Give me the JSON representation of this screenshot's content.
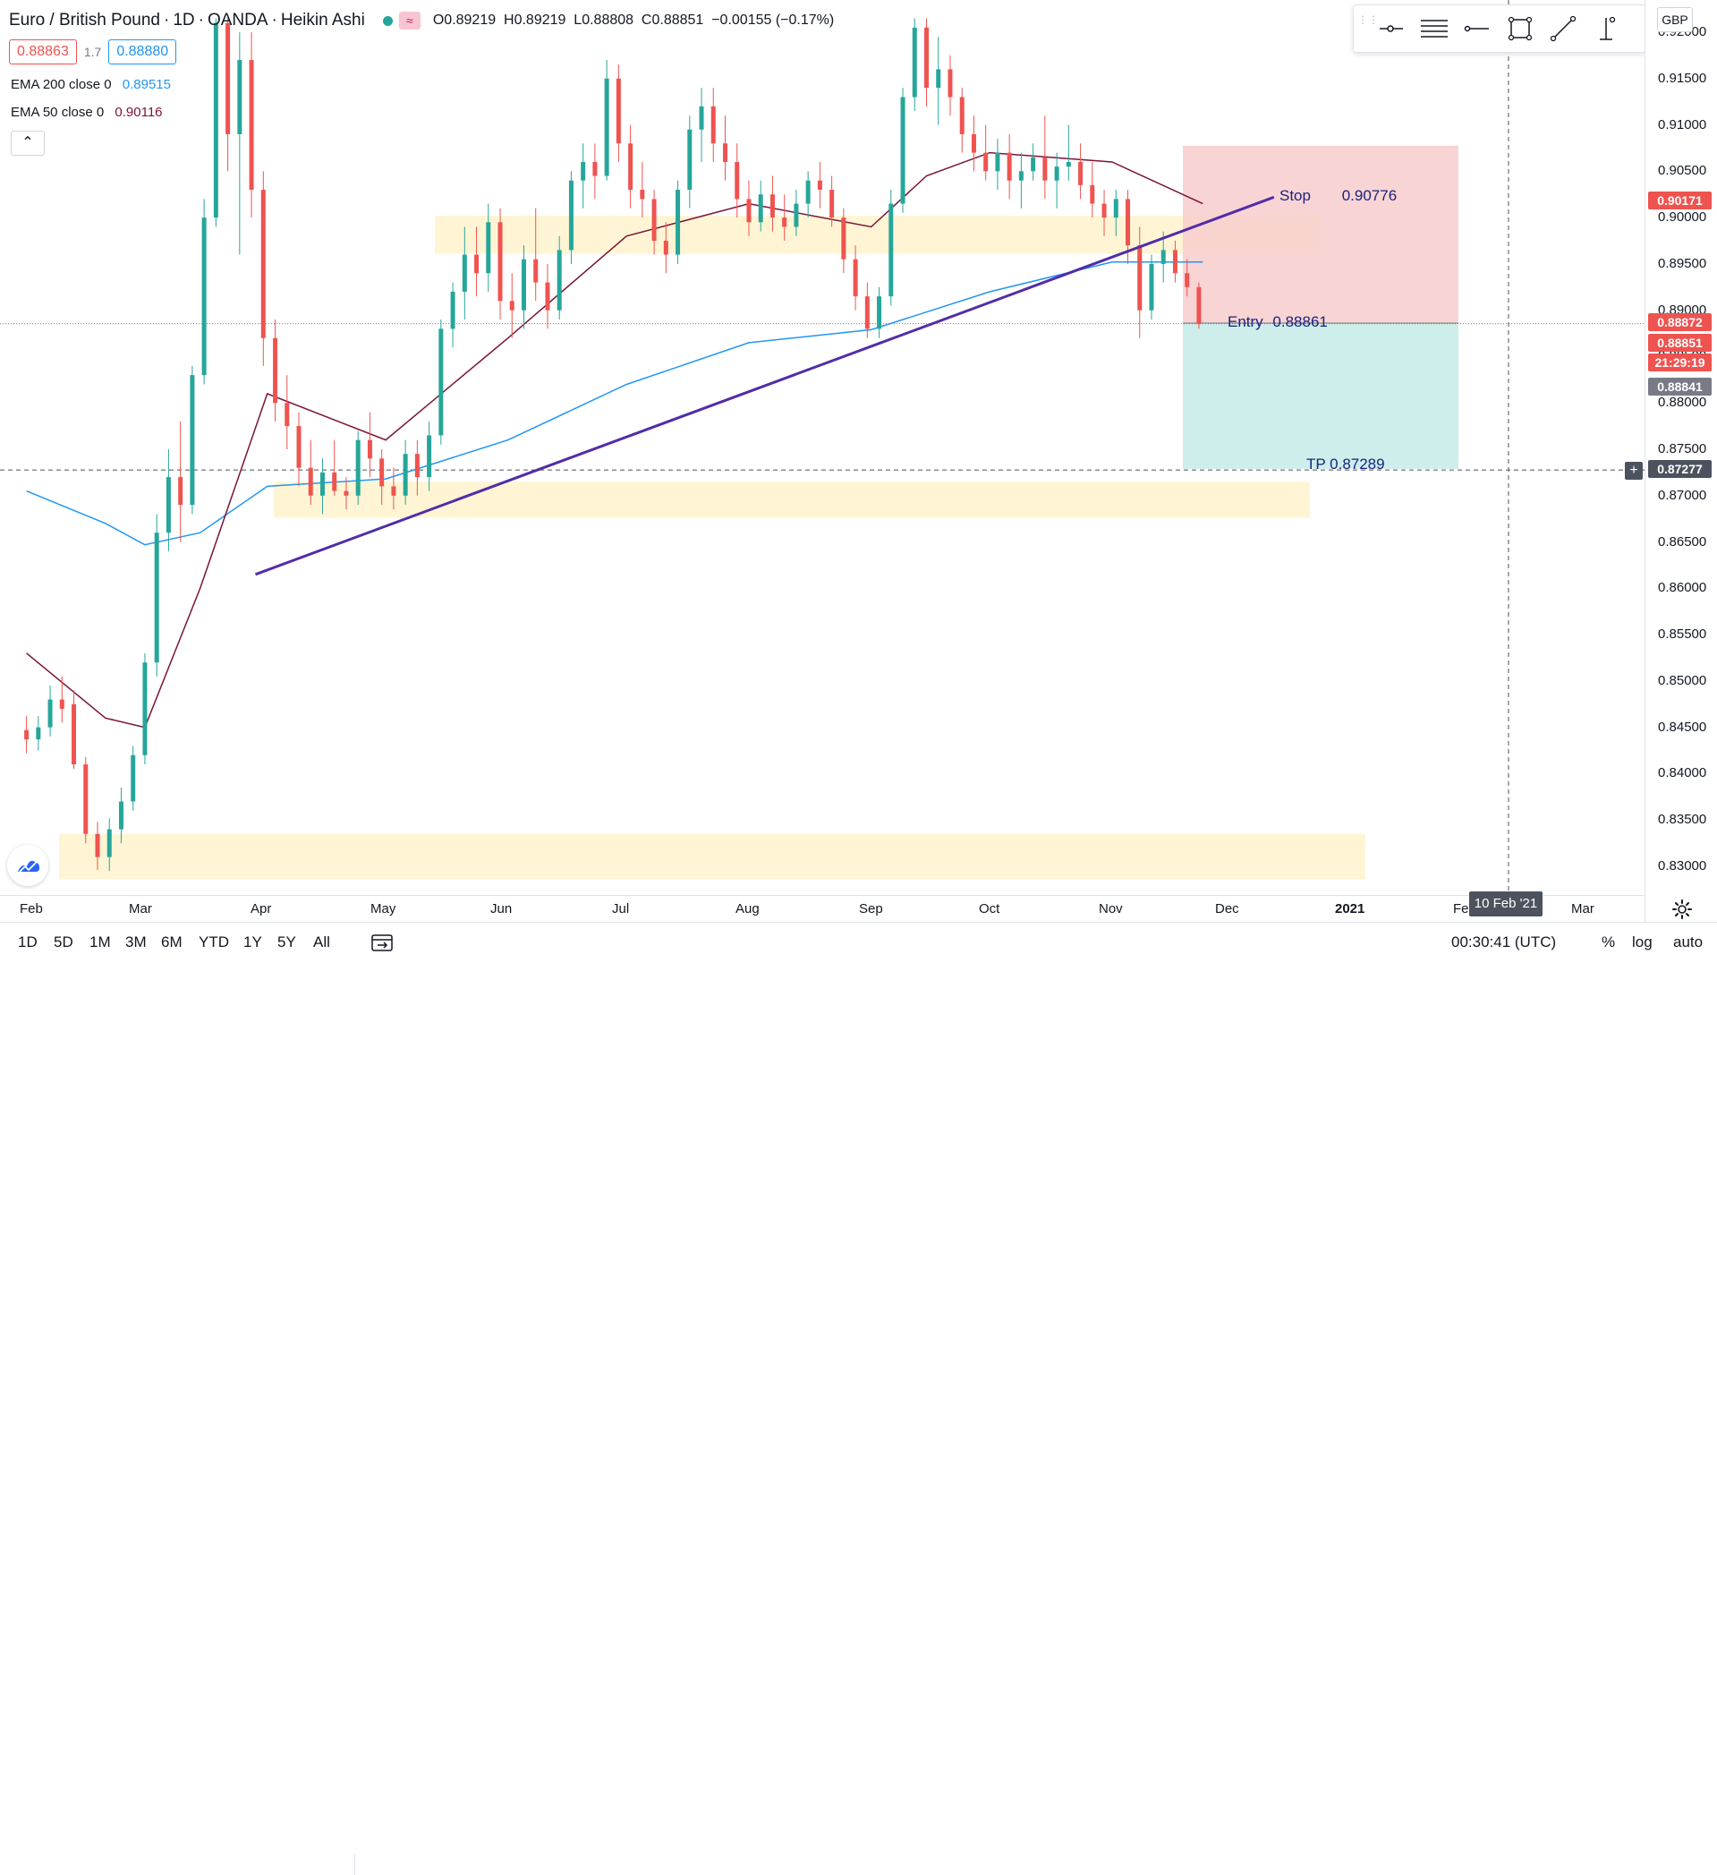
{
  "symbol": {
    "name": "Euro / British Pound",
    "interval": "1D",
    "exchange": "OANDA",
    "chart_style": "Heikin Ashi",
    "open": "O0.89219",
    "high": "H0.89219",
    "low": "L0.88808",
    "close": "C0.88851",
    "change": "−0.00155 (−0.17%)"
  },
  "quote": {
    "bid": "0.88863",
    "spread": "1.7",
    "ask": "0.88880"
  },
  "indicators": {
    "ema200_label": "EMA 200 close 0",
    "ema200_value": "0.89515",
    "ema50_label": "EMA 50 close 0",
    "ema50_value": "0.90116"
  },
  "collapse_glyph": "⌃",
  "currency": "GBP",
  "drawing_toolbar": {
    "tools": [
      "horizontal-ray-icon",
      "fib-levels-icon",
      "horizontal-line-icon",
      "rectangle-icon",
      "trend-line-icon",
      "vertical-line-icon"
    ]
  },
  "price_axis": {
    "ticks": [
      "0.92000",
      "0.91500",
      "0.91000",
      "0.90500",
      "0.90000",
      "0.89500",
      "0.89000",
      "0.88500",
      "0.88000",
      "0.87500",
      "0.87000",
      "0.86500",
      "0.86000",
      "0.85500",
      "0.85000",
      "0.84500",
      "0.84000",
      "0.83500",
      "0.83000"
    ],
    "tags": [
      {
        "text": "0.90171",
        "color": "#ef5350"
      },
      {
        "text": "0.88872",
        "color": "#ef5350"
      },
      {
        "text": "0.88851",
        "color": "#ef5350"
      },
      {
        "text": "21:29:19",
        "color": "#ef5350"
      },
      {
        "text": "0.88841",
        "color": "#787b86"
      },
      {
        "text": "0.87277",
        "color": "#4c525e"
      }
    ]
  },
  "time_axis": {
    "labels": [
      {
        "text": "Feb",
        "bold": false
      },
      {
        "text": "Mar",
        "bold": false
      },
      {
        "text": "Apr",
        "bold": false
      },
      {
        "text": "May",
        "bold": false
      },
      {
        "text": "Jun",
        "bold": false
      },
      {
        "text": "Jul",
        "bold": false
      },
      {
        "text": "Aug",
        "bold": false
      },
      {
        "text": "Sep",
        "bold": false
      },
      {
        "text": "Oct",
        "bold": false
      },
      {
        "text": "Nov",
        "bold": false
      },
      {
        "text": "Dec",
        "bold": false
      },
      {
        "text": "2021",
        "bold": true
      },
      {
        "text": "Fe",
        "bold": false
      },
      {
        "text": "Mar",
        "bold": false
      }
    ],
    "crosshair_date": "10 Feb '21"
  },
  "annotations": {
    "stop": "Stop",
    "stop_price": "0.90776",
    "entry": "Entry",
    "entry_price": "0.88861",
    "tp": "TP 0.87289"
  },
  "bottom_bar": {
    "ranges": [
      "1D",
      "5D",
      "1M",
      "3M",
      "6M",
      "YTD",
      "1Y",
      "5Y",
      "All"
    ],
    "clock": "00:30:41 (UTC)",
    "percent": "%",
    "log": "log",
    "auto": "auto"
  },
  "plus_glyph": "+",
  "colors": {
    "up": "#26a69a",
    "down": "#ef5350",
    "ema200": "#2196f3",
    "ema50": "#7b1339",
    "trendline": "#512da8",
    "zone": "#fff3cd",
    "stop_zone": "#f8cdcd",
    "target_zone": "#c8ece8"
  },
  "chart_data": {
    "type": "candlestick",
    "chart_style": "Heikin Ashi",
    "title": "Euro / British Pound",
    "ylim": [
      0.8275,
      0.9215
    ],
    "support_resistance_zones": [
      [
        0.8961,
        0.9002
      ],
      [
        0.8676,
        0.8715
      ],
      [
        0.8286,
        0.8335
      ]
    ],
    "position": {
      "stop": 0.90776,
      "entry": 0.88861,
      "take_profit": 0.87289
    },
    "trendline": [
      {
        "date": "2020-03-29",
        "price": 0.8615
      },
      {
        "date": "2020-12-12",
        "price": 0.9022
      }
    ],
    "ema200_points": [
      {
        "date": "2020-01-31",
        "price": 0.8705
      },
      {
        "date": "2020-02-20",
        "price": 0.867
      },
      {
        "date": "2020-03-01",
        "price": 0.8647
      },
      {
        "date": "2020-03-15",
        "price": 0.866
      },
      {
        "date": "2020-04-01",
        "price": 0.871
      },
      {
        "date": "2020-05-01",
        "price": 0.8718
      },
      {
        "date": "2020-06-01",
        "price": 0.876
      },
      {
        "date": "2020-07-01",
        "price": 0.882
      },
      {
        "date": "2020-08-01",
        "price": 0.8865
      },
      {
        "date": "2020-09-01",
        "price": 0.8879
      },
      {
        "date": "2020-10-01",
        "price": 0.892
      },
      {
        "date": "2020-11-01",
        "price": 0.8952
      },
      {
        "date": "2020-11-24",
        "price": 0.8952
      }
    ],
    "ema50_points": [
      {
        "date": "2020-01-31",
        "price": 0.853
      },
      {
        "date": "2020-02-20",
        "price": 0.846
      },
      {
        "date": "2020-03-01",
        "price": 0.845
      },
      {
        "date": "2020-03-15",
        "price": 0.86
      },
      {
        "date": "2020-04-01",
        "price": 0.881
      },
      {
        "date": "2020-05-01",
        "price": 0.876
      },
      {
        "date": "2020-06-01",
        "price": 0.887
      },
      {
        "date": "2020-07-01",
        "price": 0.898
      },
      {
        "date": "2020-08-01",
        "price": 0.9015
      },
      {
        "date": "2020-09-01",
        "price": 0.899
      },
      {
        "date": "2020-09-15",
        "price": 0.9045
      },
      {
        "date": "2020-10-01",
        "price": 0.907
      },
      {
        "date": "2020-11-01",
        "price": 0.906
      },
      {
        "date": "2020-11-24",
        "price": 0.9015
      }
    ],
    "candles": [
      {
        "date": "2020-01-31",
        "open": 0.8447,
        "high": 0.8462,
        "low": 0.8422,
        "close": 0.8437
      },
      {
        "date": "2020-02-03",
        "open": 0.8437,
        "high": 0.8462,
        "low": 0.8425,
        "close": 0.845
      },
      {
        "date": "2020-02-06",
        "open": 0.845,
        "high": 0.8495,
        "low": 0.844,
        "close": 0.848
      },
      {
        "date": "2020-02-09",
        "open": 0.848,
        "high": 0.8505,
        "low": 0.8455,
        "close": 0.847
      },
      {
        "date": "2020-02-12",
        "open": 0.8475,
        "high": 0.849,
        "low": 0.8405,
        "close": 0.841
      },
      {
        "date": "2020-02-15",
        "open": 0.841,
        "high": 0.8418,
        "low": 0.8325,
        "close": 0.8335
      },
      {
        "date": "2020-02-18",
        "open": 0.8335,
        "high": 0.8348,
        "low": 0.8296,
        "close": 0.831
      },
      {
        "date": "2020-02-21",
        "open": 0.831,
        "high": 0.8352,
        "low": 0.8295,
        "close": 0.834
      },
      {
        "date": "2020-02-24",
        "open": 0.834,
        "high": 0.8385,
        "low": 0.8325,
        "close": 0.837
      },
      {
        "date": "2020-02-27",
        "open": 0.837,
        "high": 0.843,
        "low": 0.836,
        "close": 0.842
      },
      {
        "date": "2020-03-01",
        "open": 0.842,
        "high": 0.853,
        "low": 0.841,
        "close": 0.852
      },
      {
        "date": "2020-03-04",
        "open": 0.852,
        "high": 0.868,
        "low": 0.8505,
        "close": 0.866
      },
      {
        "date": "2020-03-07",
        "open": 0.866,
        "high": 0.875,
        "low": 0.864,
        "close": 0.872
      },
      {
        "date": "2020-03-10",
        "open": 0.872,
        "high": 0.878,
        "low": 0.865,
        "close": 0.869
      },
      {
        "date": "2020-03-13",
        "open": 0.869,
        "high": 0.884,
        "low": 0.868,
        "close": 0.883
      },
      {
        "date": "2020-03-16",
        "open": 0.883,
        "high": 0.902,
        "low": 0.882,
        "close": 0.9
      },
      {
        "date": "2020-03-19",
        "open": 0.9,
        "high": 0.9215,
        "low": 0.899,
        "close": 0.921
      },
      {
        "date": "2020-03-22",
        "open": 0.921,
        "high": 0.9215,
        "low": 0.905,
        "close": 0.909
      },
      {
        "date": "2020-03-25",
        "open": 0.909,
        "high": 0.92,
        "low": 0.896,
        "close": 0.917
      },
      {
        "date": "2020-03-28",
        "open": 0.917,
        "high": 0.92,
        "low": 0.9,
        "close": 0.903
      },
      {
        "date": "2020-03-31",
        "open": 0.903,
        "high": 0.905,
        "low": 0.884,
        "close": 0.887
      },
      {
        "date": "2020-04-03",
        "open": 0.887,
        "high": 0.889,
        "low": 0.878,
        "close": 0.88
      },
      {
        "date": "2020-04-06",
        "open": 0.88,
        "high": 0.883,
        "low": 0.875,
        "close": 0.8775
      },
      {
        "date": "2020-04-09",
        "open": 0.8775,
        "high": 0.879,
        "low": 0.871,
        "close": 0.873
      },
      {
        "date": "2020-04-12",
        "open": 0.873,
        "high": 0.876,
        "low": 0.869,
        "close": 0.87
      },
      {
        "date": "2020-04-15",
        "open": 0.87,
        "high": 0.874,
        "low": 0.868,
        "close": 0.8725
      },
      {
        "date": "2020-04-18",
        "open": 0.8725,
        "high": 0.876,
        "low": 0.87,
        "close": 0.8705
      },
      {
        "date": "2020-04-21",
        "open": 0.8705,
        "high": 0.872,
        "low": 0.8685,
        "close": 0.87
      },
      {
        "date": "2020-04-24",
        "open": 0.87,
        "high": 0.877,
        "low": 0.869,
        "close": 0.876
      },
      {
        "date": "2020-04-27",
        "open": 0.876,
        "high": 0.879,
        "low": 0.872,
        "close": 0.874
      },
      {
        "date": "2020-04-30",
        "open": 0.874,
        "high": 0.875,
        "low": 0.869,
        "close": 0.871
      },
      {
        "date": "2020-05-03",
        "open": 0.871,
        "high": 0.873,
        "low": 0.8685,
        "close": 0.87
      },
      {
        "date": "2020-05-06",
        "open": 0.87,
        "high": 0.876,
        "low": 0.869,
        "close": 0.8745
      },
      {
        "date": "2020-05-09",
        "open": 0.8745,
        "high": 0.876,
        "low": 0.87,
        "close": 0.872
      },
      {
        "date": "2020-05-12",
        "open": 0.872,
        "high": 0.878,
        "low": 0.8705,
        "close": 0.8765
      },
      {
        "date": "2020-05-15",
        "open": 0.8765,
        "high": 0.889,
        "low": 0.8755,
        "close": 0.888
      },
      {
        "date": "2020-05-18",
        "open": 0.888,
        "high": 0.893,
        "low": 0.886,
        "close": 0.892
      },
      {
        "date": "2020-05-21",
        "open": 0.892,
        "high": 0.899,
        "low": 0.889,
        "close": 0.896
      },
      {
        "date": "2020-05-24",
        "open": 0.896,
        "high": 0.899,
        "low": 0.8915,
        "close": 0.894
      },
      {
        "date": "2020-05-27",
        "open": 0.894,
        "high": 0.9015,
        "low": 0.892,
        "close": 0.8995
      },
      {
        "date": "2020-05-30",
        "open": 0.8995,
        "high": 0.901,
        "low": 0.889,
        "close": 0.891
      },
      {
        "date": "2020-06-02",
        "open": 0.891,
        "high": 0.894,
        "low": 0.887,
        "close": 0.89
      },
      {
        "date": "2020-06-05",
        "open": 0.89,
        "high": 0.897,
        "low": 0.888,
        "close": 0.8955
      },
      {
        "date": "2020-06-08",
        "open": 0.8955,
        "high": 0.901,
        "low": 0.891,
        "close": 0.893
      },
      {
        "date": "2020-06-11",
        "open": 0.893,
        "high": 0.895,
        "low": 0.888,
        "close": 0.89
      },
      {
        "date": "2020-06-14",
        "open": 0.89,
        "high": 0.898,
        "low": 0.889,
        "close": 0.8965
      },
      {
        "date": "2020-06-17",
        "open": 0.8965,
        "high": 0.905,
        "low": 0.895,
        "close": 0.904
      },
      {
        "date": "2020-06-20",
        "open": 0.904,
        "high": 0.908,
        "low": 0.901,
        "close": 0.906
      },
      {
        "date": "2020-06-23",
        "open": 0.906,
        "high": 0.908,
        "low": 0.902,
        "close": 0.9045
      },
      {
        "date": "2020-06-26",
        "open": 0.9045,
        "high": 0.917,
        "low": 0.904,
        "close": 0.915
      },
      {
        "date": "2020-06-29",
        "open": 0.915,
        "high": 0.9165,
        "low": 0.906,
        "close": 0.908
      },
      {
        "date": "2020-07-02",
        "open": 0.908,
        "high": 0.91,
        "low": 0.901,
        "close": 0.903
      },
      {
        "date": "2020-07-05",
        "open": 0.903,
        "high": 0.906,
        "low": 0.9,
        "close": 0.902
      },
      {
        "date": "2020-07-08",
        "open": 0.902,
        "high": 0.903,
        "low": 0.896,
        "close": 0.8975
      },
      {
        "date": "2020-07-11",
        "open": 0.8975,
        "high": 0.8995,
        "low": 0.894,
        "close": 0.896
      },
      {
        "date": "2020-07-14",
        "open": 0.896,
        "high": 0.904,
        "low": 0.895,
        "close": 0.903
      },
      {
        "date": "2020-07-17",
        "open": 0.903,
        "high": 0.911,
        "low": 0.901,
        "close": 0.9095
      },
      {
        "date": "2020-07-20",
        "open": 0.9095,
        "high": 0.914,
        "low": 0.906,
        "close": 0.912
      },
      {
        "date": "2020-07-23",
        "open": 0.912,
        "high": 0.914,
        "low": 0.906,
        "close": 0.908
      },
      {
        "date": "2020-07-26",
        "open": 0.908,
        "high": 0.911,
        "low": 0.904,
        "close": 0.906
      },
      {
        "date": "2020-07-29",
        "open": 0.906,
        "high": 0.908,
        "low": 0.9,
        "close": 0.902
      },
      {
        "date": "2020-08-01",
        "open": 0.902,
        "high": 0.904,
        "low": 0.898,
        "close": 0.8995
      },
      {
        "date": "2020-08-04",
        "open": 0.8995,
        "high": 0.904,
        "low": 0.8985,
        "close": 0.9025
      },
      {
        "date": "2020-08-07",
        "open": 0.9025,
        "high": 0.9045,
        "low": 0.8985,
        "close": 0.9
      },
      {
        "date": "2020-08-10",
        "open": 0.9,
        "high": 0.9025,
        "low": 0.8975,
        "close": 0.899
      },
      {
        "date": "2020-08-13",
        "open": 0.899,
        "high": 0.903,
        "low": 0.898,
        "close": 0.9015
      },
      {
        "date": "2020-08-16",
        "open": 0.9015,
        "high": 0.905,
        "low": 0.9,
        "close": 0.904
      },
      {
        "date": "2020-08-19",
        "open": 0.904,
        "high": 0.906,
        "low": 0.901,
        "close": 0.903
      },
      {
        "date": "2020-08-22",
        "open": 0.903,
        "high": 0.9045,
        "low": 0.899,
        "close": 0.9
      },
      {
        "date": "2020-08-25",
        "open": 0.9,
        "high": 0.901,
        "low": 0.894,
        "close": 0.8955
      },
      {
        "date": "2020-08-28",
        "open": 0.8955,
        "high": 0.897,
        "low": 0.89,
        "close": 0.8915
      },
      {
        "date": "2020-08-31",
        "open": 0.8915,
        "high": 0.893,
        "low": 0.887,
        "close": 0.888
      },
      {
        "date": "2020-09-03",
        "open": 0.888,
        "high": 0.8925,
        "low": 0.887,
        "close": 0.8915
      },
      {
        "date": "2020-09-06",
        "open": 0.8915,
        "high": 0.903,
        "low": 0.8905,
        "close": 0.9015
      },
      {
        "date": "2020-09-09",
        "open": 0.9015,
        "high": 0.914,
        "low": 0.9005,
        "close": 0.913
      },
      {
        "date": "2020-09-12",
        "open": 0.913,
        "high": 0.9215,
        "low": 0.9115,
        "close": 0.9205
      },
      {
        "date": "2020-09-15",
        "open": 0.9205,
        "high": 0.9215,
        "low": 0.912,
        "close": 0.914
      },
      {
        "date": "2020-09-18",
        "open": 0.914,
        "high": 0.9195,
        "low": 0.91,
        "close": 0.916
      },
      {
        "date": "2020-09-21",
        "open": 0.916,
        "high": 0.9175,
        "low": 0.911,
        "close": 0.913
      },
      {
        "date": "2020-09-24",
        "open": 0.913,
        "high": 0.914,
        "low": 0.907,
        "close": 0.909
      },
      {
        "date": "2020-09-27",
        "open": 0.909,
        "high": 0.911,
        "low": 0.905,
        "close": 0.907
      },
      {
        "date": "2020-09-30",
        "open": 0.907,
        "high": 0.91,
        "low": 0.904,
        "close": 0.905
      },
      {
        "date": "2020-10-03",
        "open": 0.905,
        "high": 0.9085,
        "low": 0.903,
        "close": 0.907
      },
      {
        "date": "2020-10-06",
        "open": 0.907,
        "high": 0.909,
        "low": 0.902,
        "close": 0.904
      },
      {
        "date": "2020-10-09",
        "open": 0.904,
        "high": 0.907,
        "low": 0.901,
        "close": 0.905
      },
      {
        "date": "2020-10-12",
        "open": 0.905,
        "high": 0.908,
        "low": 0.904,
        "close": 0.9065
      },
      {
        "date": "2020-10-15",
        "open": 0.9065,
        "high": 0.911,
        "low": 0.902,
        "close": 0.904
      },
      {
        "date": "2020-10-18",
        "open": 0.904,
        "high": 0.907,
        "low": 0.901,
        "close": 0.9055
      },
      {
        "date": "2020-10-21",
        "open": 0.9055,
        "high": 0.91,
        "low": 0.904,
        "close": 0.906
      },
      {
        "date": "2020-10-24",
        "open": 0.906,
        "high": 0.908,
        "low": 0.902,
        "close": 0.9035
      },
      {
        "date": "2020-10-27",
        "open": 0.9035,
        "high": 0.906,
        "low": 0.9,
        "close": 0.9015
      },
      {
        "date": "2020-10-30",
        "open": 0.9015,
        "high": 0.903,
        "low": 0.898,
        "close": 0.9
      },
      {
        "date": "2020-11-02",
        "open": 0.9,
        "high": 0.903,
        "low": 0.898,
        "close": 0.902
      },
      {
        "date": "2020-11-05",
        "open": 0.902,
        "high": 0.903,
        "low": 0.895,
        "close": 0.897
      },
      {
        "date": "2020-11-08",
        "open": 0.897,
        "high": 0.899,
        "low": 0.887,
        "close": 0.89
      },
      {
        "date": "2020-11-11",
        "open": 0.89,
        "high": 0.896,
        "low": 0.889,
        "close": 0.895
      },
      {
        "date": "2020-11-14",
        "open": 0.895,
        "high": 0.8985,
        "low": 0.893,
        "close": 0.8965
      },
      {
        "date": "2020-11-17",
        "open": 0.8965,
        "high": 0.8975,
        "low": 0.893,
        "close": 0.894
      },
      {
        "date": "2020-11-20",
        "open": 0.894,
        "high": 0.8955,
        "low": 0.8915,
        "close": 0.8925
      },
      {
        "date": "2020-11-23",
        "open": 0.8925,
        "high": 0.893,
        "low": 0.888,
        "close": 0.8885
      }
    ]
  }
}
